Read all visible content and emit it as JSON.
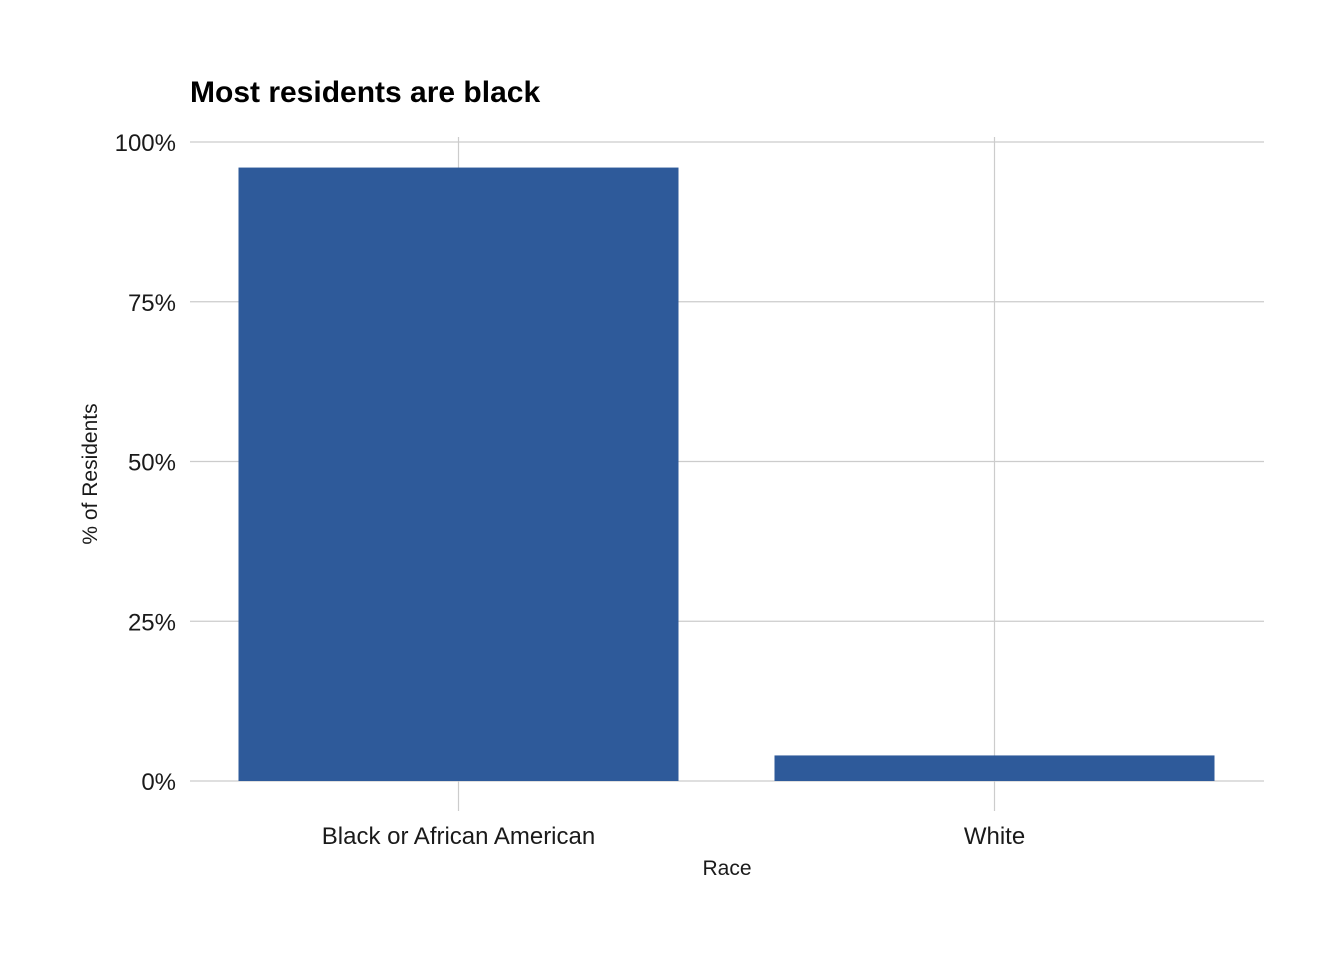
{
  "chart_data": {
    "type": "bar",
    "title": "Most residents are black",
    "xlabel": "Race",
    "ylabel": "% of Residents",
    "categories": [
      "Black or African American",
      "White"
    ],
    "values": [
      96,
      4
    ],
    "ylim": [
      0,
      100
    ],
    "yticks": [
      0,
      25,
      50,
      75,
      100
    ],
    "ytick_labels": [
      "0%",
      "25%",
      "50%",
      "75%",
      "100%"
    ],
    "bar_color": "#2e5a9a",
    "grid": true,
    "legend": "none"
  }
}
